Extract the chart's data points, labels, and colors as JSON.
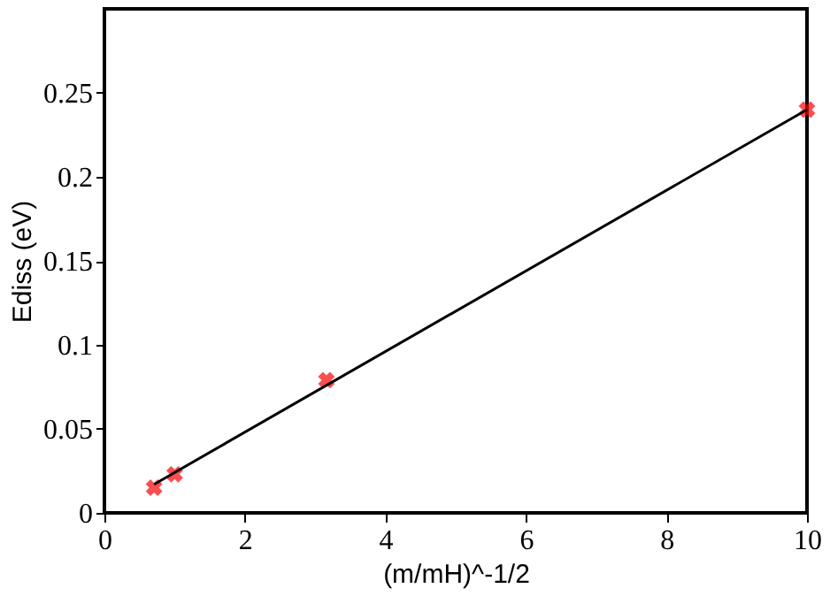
{
  "chart_data": {
    "type": "scatter",
    "xlabel": "(m/mH)^-1/2",
    "ylabel": "Ediss (eV)",
    "xlim": [
      0,
      10
    ],
    "ylim": [
      0,
      0.3
    ],
    "xticks": [
      0,
      2,
      4,
      6,
      8,
      10
    ],
    "yticks": [
      0,
      0.05,
      0.1,
      0.15,
      0.2,
      0.25
    ],
    "grid": false,
    "marker": "cross",
    "series": [
      {
        "type": "scatter",
        "color": "#ff0000",
        "x": [
          0.707,
          1,
          3.16,
          10
        ],
        "values": [
          0.015,
          0.023,
          0.079,
          0.24
        ]
      },
      {
        "type": "line",
        "color": "#000000",
        "x": [
          0.707,
          10
        ],
        "values": [
          0.017,
          0.24
        ],
        "marker": "none",
        "line_style": "solid"
      }
    ]
  }
}
